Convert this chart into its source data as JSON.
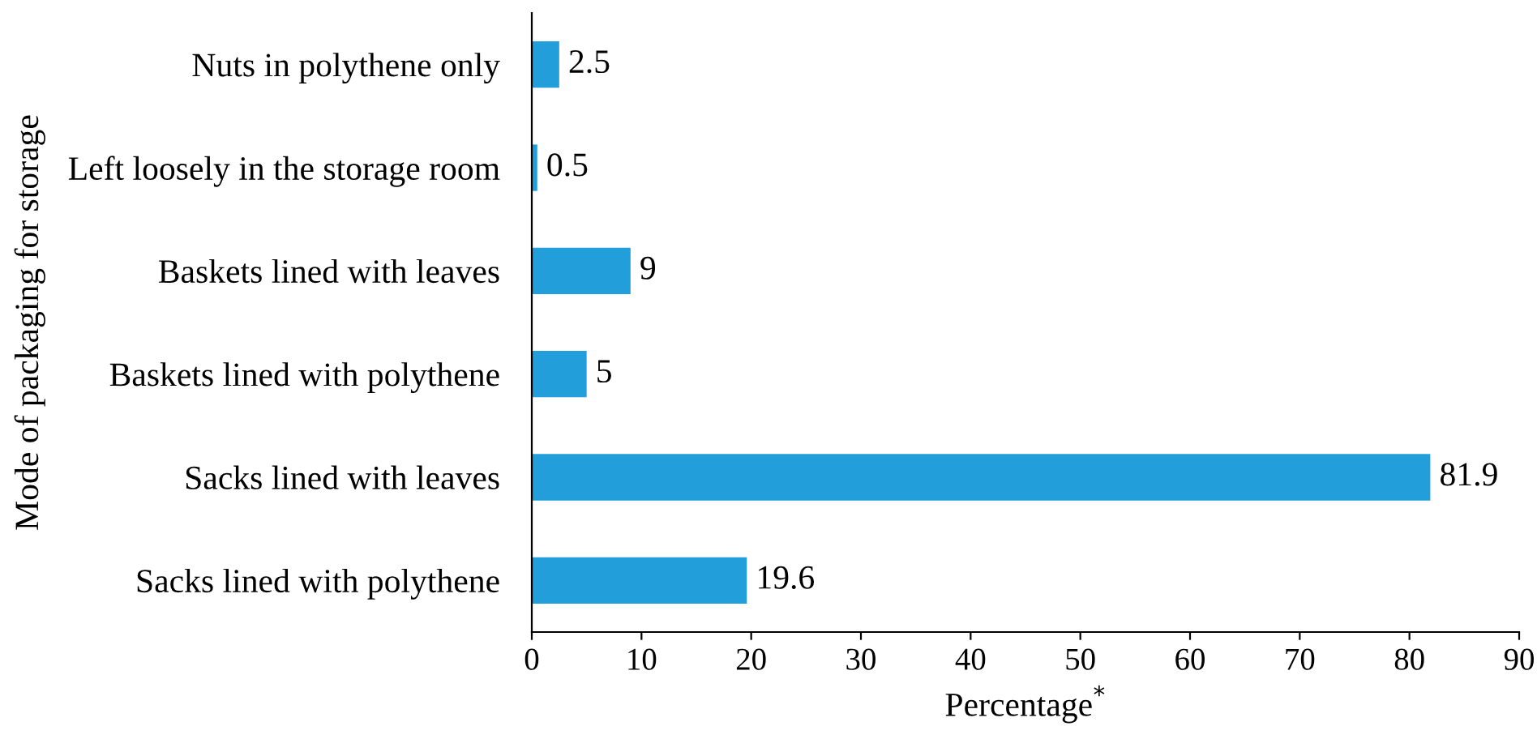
{
  "chart_data": {
    "type": "bar",
    "orientation": "horizontal",
    "categories": [
      "Nuts in polythene only",
      "Left loosely in the storage room",
      "Baskets lined with leaves",
      "Baskets lined with polythene",
      "Sacks lined with leaves",
      "Sacks lined with polythene"
    ],
    "values": [
      2.5,
      0.5,
      9,
      5,
      81.9,
      19.6
    ],
    "color": "#229fda",
    "xlim": [
      0,
      90
    ],
    "xticks": [
      0,
      10,
      20,
      30,
      40,
      50,
      60,
      70,
      80,
      90
    ],
    "xlabel": "Percentage$^{*}$",
    "ylabel": "Mode of packaging for storage",
    "data_labels": true,
    "grid": false,
    "legend": false
  }
}
